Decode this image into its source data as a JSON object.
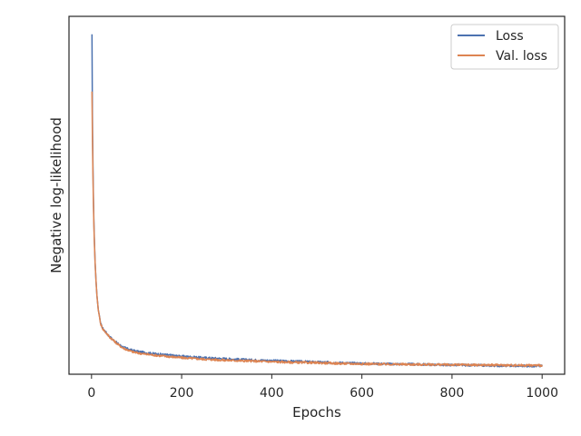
{
  "chart_data": {
    "type": "line",
    "title": "",
    "xlabel": "Epochs",
    "ylabel": "Negative log-likelihood",
    "xlim": [
      -50,
      1050
    ],
    "ylim": [
      0,
      100
    ],
    "x_ticks": [
      0,
      200,
      400,
      600,
      800,
      1000
    ],
    "x_tick_labels": [
      "0",
      "200",
      "400",
      "600",
      "800",
      "1000"
    ],
    "y_ticks_shown": false,
    "grid": false,
    "legend_position": "top-right",
    "series": [
      {
        "name": "Loss",
        "color": "#4c72b0",
        "x": [
          1,
          2,
          3,
          4,
          5,
          6,
          8,
          10,
          12,
          15,
          18,
          20,
          25,
          30,
          40,
          50,
          60,
          70,
          80,
          90,
          100,
          120,
          150,
          200,
          250,
          300,
          350,
          400,
          450,
          500,
          550,
          600,
          650,
          700,
          750,
          800,
          850,
          900,
          950,
          1000
        ],
        "y": [
          95,
          72,
          60,
          51,
          44,
          39,
          31,
          26,
          22,
          18,
          16,
          14.2,
          12.8,
          12,
          10.5,
          9.4,
          8.4,
          7.6,
          7.1,
          6.7,
          6.4,
          6.0,
          5.6,
          5.0,
          4.6,
          4.3,
          4.0,
          3.8,
          3.6,
          3.4,
          3.2,
          3.0,
          2.9,
          2.8,
          2.7,
          2.6,
          2.5,
          2.4,
          2.35,
          2.3
        ]
      },
      {
        "name": "Val. loss",
        "color": "#dd8452",
        "x": [
          1,
          2,
          3,
          4,
          5,
          6,
          8,
          10,
          12,
          15,
          18,
          20,
          25,
          30,
          40,
          50,
          60,
          70,
          80,
          90,
          100,
          120,
          150,
          200,
          250,
          300,
          350,
          400,
          450,
          500,
          550,
          600,
          650,
          700,
          750,
          800,
          850,
          900,
          950,
          1000
        ],
        "y": [
          79,
          66,
          57,
          49,
          43,
          38,
          31,
          26,
          22,
          18,
          15.8,
          14.1,
          12.7,
          11.9,
          10.4,
          9.3,
          8.2,
          7.3,
          6.8,
          6.3,
          6.0,
          5.6,
          5.2,
          4.6,
          4.2,
          3.9,
          3.7,
          3.5,
          3.3,
          3.2,
          3.0,
          2.9,
          2.8,
          2.75,
          2.7,
          2.65,
          2.6,
          2.55,
          2.5,
          2.5
        ]
      }
    ]
  }
}
